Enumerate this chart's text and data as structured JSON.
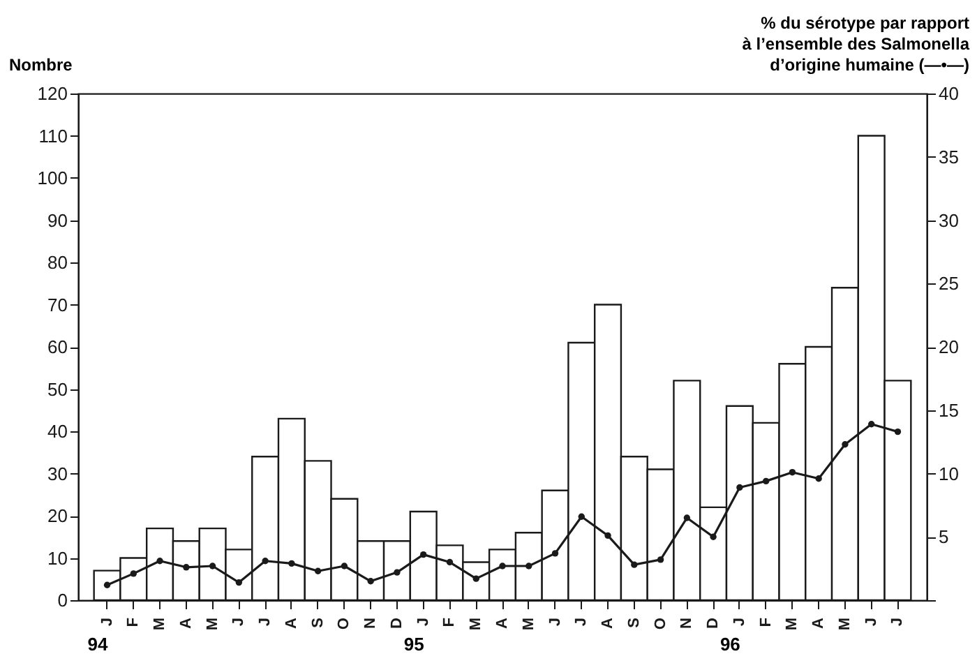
{
  "chart_data": {
    "type": "bar",
    "ylabel": "Nombre",
    "y2label": "% du sérotype par rapport\nà l’ensemble des Salmonella\nd’origine humaine (—•—)",
    "categories": [
      "J",
      "F",
      "M",
      "A",
      "M",
      "J",
      "J",
      "A",
      "S",
      "O",
      "N",
      "D",
      "J",
      "F",
      "M",
      "A",
      "M",
      "J",
      "J",
      "A",
      "S",
      "O",
      "N",
      "D",
      "J",
      "F",
      "M",
      "A",
      "M",
      "J",
      "J"
    ],
    "series": [
      {
        "type": "bar",
        "color": "#ffffff",
        "values": [
          7,
          10,
          17,
          14,
          17,
          12,
          34,
          43,
          33,
          24,
          14,
          14,
          21,
          13,
          9,
          12,
          16,
          26,
          61,
          70,
          34,
          31,
          52,
          22,
          46,
          42,
          56,
          60,
          74,
          110,
          52
        ]
      },
      {
        "type": "line",
        "axis": "y2",
        "color": "#1a1a1a",
        "marker": "circle",
        "line_style": "solid",
        "values": [
          1.2,
          2.1,
          3.1,
          2.6,
          2.7,
          1.4,
          3.1,
          2.9,
          2.3,
          2.7,
          1.5,
          2.2,
          3.6,
          3.0,
          1.7,
          2.7,
          2.7,
          3.7,
          6.6,
          5.1,
          2.8,
          3.2,
          6.5,
          5.0,
          8.9,
          9.4,
          10.1,
          9.6,
          12.3,
          13.9,
          13.3
        ]
      }
    ],
    "ylim": [
      0,
      120
    ],
    "yticks": [
      0,
      10,
      20,
      30,
      40,
      50,
      60,
      70,
      80,
      90,
      100,
      110,
      120
    ],
    "y2lim": [
      0,
      40
    ],
    "y2ticks": [
      {
        "value": 0,
        "label": null
      },
      5,
      10,
      15,
      20,
      25,
      30,
      35,
      40
    ],
    "grid": false,
    "annotations": [
      "94",
      "95",
      "96"
    ]
  }
}
